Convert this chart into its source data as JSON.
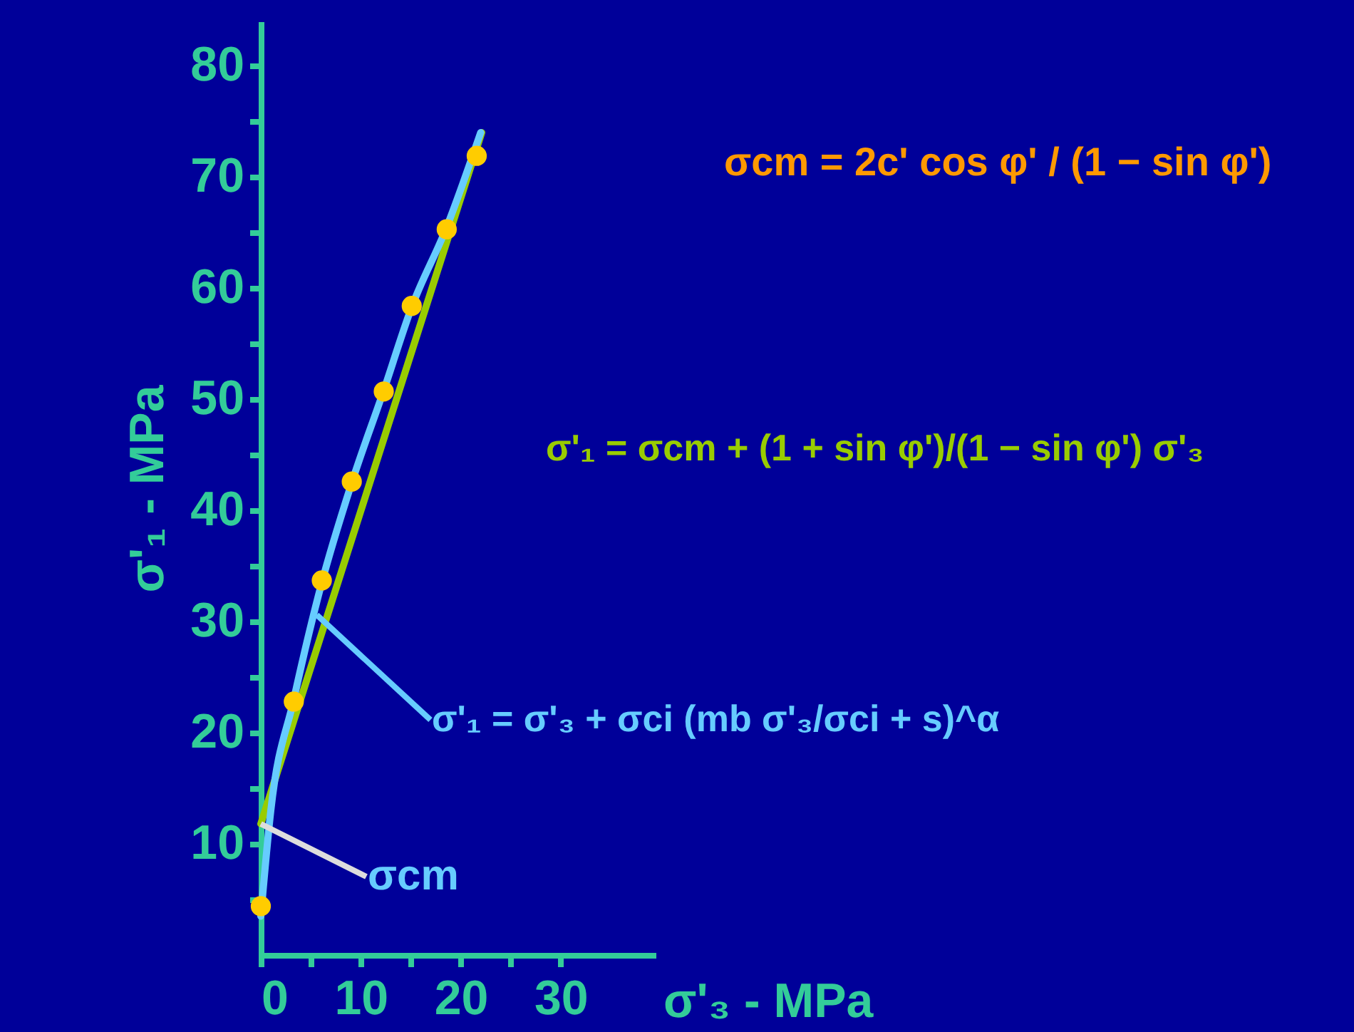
{
  "chart_data": {
    "type": "scatter",
    "xlabel": "σ'₃ - MPa",
    "ylabel": "σ'₁ - MPa",
    "xlim": [
      0,
      39.5
    ],
    "ylim": [
      0,
      84
    ],
    "xticks": [
      0,
      {
        "value": 5,
        "label": null
      },
      10,
      {
        "value": 15,
        "label": null
      },
      20,
      {
        "value": 25,
        "label": null
      },
      30
    ],
    "yticks": [
      {
        "value": 5,
        "label": null
      },
      10,
      {
        "value": 15,
        "label": null
      },
      20,
      {
        "value": 25,
        "label": null
      },
      30,
      {
        "value": 35,
        "label": null
      },
      40,
      {
        "value": 45,
        "label": null
      },
      50,
      {
        "value": 55,
        "label": null
      },
      60,
      {
        "value": 65,
        "label": null
      },
      70,
      {
        "value": 75,
        "label": null
      },
      80
    ],
    "grid": false,
    "series": [
      {
        "type": "line",
        "color": "#99cc00",
        "x": [
          0,
          22.1
        ],
        "values": [
          11.8,
          74.0
        ]
      },
      {
        "type": "line",
        "color": "#66ccff",
        "x": [
          0,
          1,
          3.3,
          6.1,
          9.1,
          12.3,
          15.1,
          18.6,
          22
        ],
        "values": [
          3.5,
          13,
          23,
          33.5,
          42.5,
          50.8,
          58.3,
          65.5,
          74
        ]
      },
      {
        "color": "#ffcc00",
        "marker": "circle",
        "x": [
          0,
          3.3,
          6.1,
          9.1,
          12.3,
          15.1,
          18.6,
          21.6
        ],
        "values": [
          4.4,
          22.8,
          33.7,
          42.6,
          50.7,
          58.4,
          65.3,
          71.9
        ]
      }
    ],
    "annotations": [
      "σcm = 2c' cos φ' / (1 − sin φ')",
      "σ'₁ = σcm + (1 + sin φ')/(1 − sin φ') σ'₃",
      {
        "text": "σ'₁ = σ'₃ + σci (mb σ'₃/σci + s)^α",
        "x": 5.6,
        "y": 30.6
      },
      {
        "text": "σcm",
        "x": 0,
        "y": 11.8
      }
    ]
  }
}
